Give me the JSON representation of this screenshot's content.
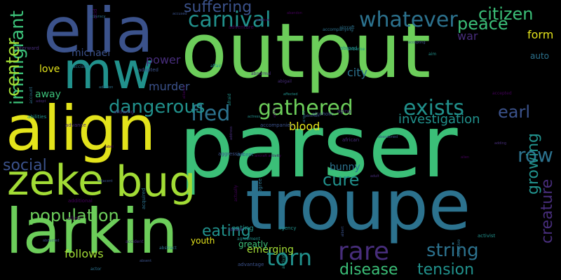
{
  "palette": {
    "background": "#000000",
    "yellow": "#e3e31b",
    "lime": "#a2dc35",
    "green": "#6ccd5a",
    "mint": "#3bbf78",
    "teal": "#21918c",
    "blue": "#2c728e",
    "indigo": "#3b528b",
    "purple": "#472d7b",
    "violet": "#44015a"
  },
  "words": [
    {
      "text": "output",
      "color": "green"
    },
    {
      "text": "parser",
      "color": "mint"
    },
    {
      "text": "troupe",
      "color": "blue"
    },
    {
      "text": "elia",
      "color": "indigo"
    },
    {
      "text": "align",
      "color": "yellow"
    },
    {
      "text": "larkin",
      "color": "green"
    },
    {
      "text": "mw",
      "color": "teal"
    },
    {
      "text": "zeke",
      "color": "lime"
    },
    {
      "text": "bug",
      "color": "lime"
    },
    {
      "text": "carnival",
      "color": "teal"
    },
    {
      "text": "whatever",
      "color": "blue"
    },
    {
      "text": "citizen",
      "color": "mint"
    },
    {
      "text": "peace",
      "color": "mint"
    },
    {
      "text": "suffering",
      "color": "indigo"
    },
    {
      "text": "immigrant",
      "color": "mint"
    },
    {
      "text": "center",
      "color": "lime"
    },
    {
      "text": "gathered",
      "color": "green"
    },
    {
      "text": "exists",
      "color": "teal"
    },
    {
      "text": "fled",
      "color": "blue"
    },
    {
      "text": "earl",
      "color": "indigo"
    },
    {
      "text": "dangerous",
      "color": "teal"
    },
    {
      "text": "investigation",
      "color": "teal"
    },
    {
      "text": "row",
      "color": "blue"
    },
    {
      "text": "growing",
      "color": "teal"
    },
    {
      "text": "creature",
      "color": "purple"
    },
    {
      "text": "social",
      "color": "indigo"
    },
    {
      "text": "cure",
      "color": "teal"
    },
    {
      "text": "population",
      "color": "green"
    },
    {
      "text": "eating",
      "color": "teal"
    },
    {
      "text": "rare",
      "color": "purple"
    },
    {
      "text": "string",
      "color": "blue"
    },
    {
      "text": "torn",
      "color": "teal"
    },
    {
      "text": "disease",
      "color": "mint"
    },
    {
      "text": "tension",
      "color": "teal"
    },
    {
      "text": "follows",
      "color": "lime"
    },
    {
      "text": "blood",
      "color": "yellow"
    },
    {
      "text": "bunny",
      "color": "blue"
    },
    {
      "text": "murder",
      "color": "indigo"
    },
    {
      "text": "power",
      "color": "purple"
    },
    {
      "text": "michael",
      "color": "indigo"
    },
    {
      "text": "love",
      "color": "yellow"
    },
    {
      "text": "away",
      "color": "mint"
    },
    {
      "text": "city",
      "color": "blue"
    },
    {
      "text": "war",
      "color": "purple"
    },
    {
      "text": "form",
      "color": "yellow"
    },
    {
      "text": "auto",
      "color": "blue"
    },
    {
      "text": "emerging",
      "color": "lime"
    },
    {
      "text": "youth",
      "color": "yellow"
    },
    {
      "text": "greatly",
      "color": "mint"
    },
    {
      "text": "eating",
      "color": "teal"
    }
  ],
  "small_words": [
    "aircraft activity",
    "address",
    "abstract",
    "aircraft",
    "airborne",
    "acid",
    "advance",
    "aggressive",
    "actor",
    "affected",
    "alliance",
    "accident",
    "alcoholic",
    "acclaim",
    "abilities",
    "accepted",
    "aboard",
    "adapted",
    "acquired",
    "activist",
    "abandon",
    "allowing",
    "absent",
    "airport",
    "agreement",
    "allied",
    "afterward",
    "albert",
    "accuracy",
    "agency",
    "achieve",
    "adopt",
    "accepting",
    "accompanying",
    "actress",
    "actually",
    "adult",
    "abducted",
    "addition",
    "afraid",
    "ability",
    "african",
    "advantage",
    "agree",
    "activate",
    "adventure",
    "aging",
    "accompanies",
    "account",
    "abroad",
    "abel",
    "adding",
    "adjacent",
    "abstract",
    "aim",
    "alien",
    "abnormal",
    "accused",
    "accept",
    "affair",
    "additional",
    "abigail",
    "abandoned",
    "adaptive"
  ]
}
